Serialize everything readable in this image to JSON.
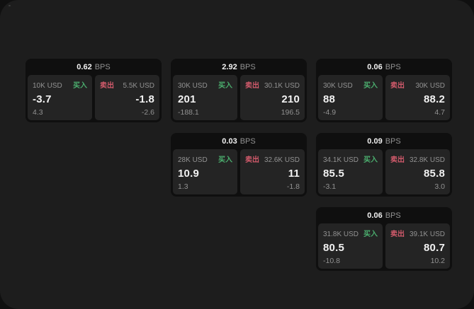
{
  "window": {
    "outer_background": "#101010",
    "background": "#1d1d1d"
  },
  "labels": {
    "buy": "买入",
    "sell": "卖出",
    "bps_unit": "BPS"
  },
  "colors": {
    "buy": "#4bae6e",
    "sell": "#d15a6b",
    "card_bg": "#0f0f0f",
    "panel_bg": "#242424",
    "text_primary": "#f2f2f2",
    "text_muted": "#929292"
  },
  "cards": [
    {
      "row": 1,
      "col": 1,
      "bps_value": "0.62",
      "buy": {
        "amount": "10K USD",
        "value": "-3.7",
        "delta": "4.3"
      },
      "sell": {
        "amount": "5.5K USD",
        "value": "-1.8",
        "delta": "-2.6"
      }
    },
    {
      "row": 1,
      "col": 2,
      "bps_value": "2.92",
      "buy": {
        "amount": "30K USD",
        "value": "201",
        "delta": "-188.1"
      },
      "sell": {
        "amount": "30.1K USD",
        "value": "210",
        "delta": "196.5"
      }
    },
    {
      "row": 1,
      "col": 3,
      "bps_value": "0.06",
      "buy": {
        "amount": "30K USD",
        "value": "88",
        "delta": "-4.9"
      },
      "sell": {
        "amount": "30K USD",
        "value": "88.2",
        "delta": "4.7"
      }
    },
    {
      "row": 2,
      "col": 2,
      "bps_value": "0.03",
      "buy": {
        "amount": "28K USD",
        "value": "10.9",
        "delta": "1.3"
      },
      "sell": {
        "amount": "32.6K USD",
        "value": "11",
        "delta": "-1.8"
      }
    },
    {
      "row": 2,
      "col": 3,
      "bps_value": "0.09",
      "buy": {
        "amount": "34.1K USD",
        "value": "85.5",
        "delta": "-3.1"
      },
      "sell": {
        "amount": "32.8K USD",
        "value": "85.8",
        "delta": "3.0"
      }
    },
    {
      "row": 3,
      "col": 3,
      "bps_value": "0.06",
      "buy": {
        "amount": "31.8K USD",
        "value": "80.5",
        "delta": "-10.8"
      },
      "sell": {
        "amount": "39.1K USD",
        "value": "80.7",
        "delta": "10.2"
      }
    }
  ]
}
